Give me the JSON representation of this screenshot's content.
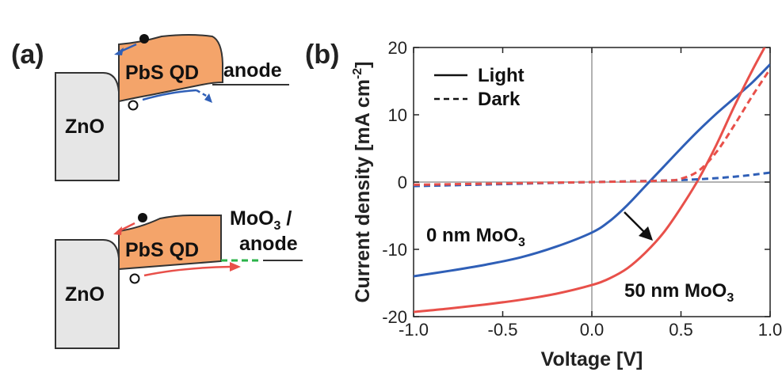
{
  "panel_a": {
    "label": "(a)",
    "top": {
      "zno": "ZnO",
      "pbs": "PbS QD",
      "contact": "anode"
    },
    "bottom": {
      "zno": "ZnO",
      "pbs": "PbS QD",
      "contact_line1_main": "MoO",
      "contact_line1_sub": "3",
      "contact_line1_tail": " /",
      "contact_line2": "anode"
    },
    "colors": {
      "pbs_fill": "#f4a46a",
      "zno_fill": "#e6e6e6",
      "top_arrow": "#2f5fb7",
      "bottom_arrow": "#e8504a",
      "moo3_dash": "#2bb34a"
    }
  },
  "chart_data": {
    "panel_label": "(b)",
    "type": "line",
    "xlabel": "Voltage [V]",
    "ylabel_main": "Current density [mA cm",
    "ylabel_sup": "-2",
    "ylabel_tail": "]",
    "xlim": [
      -1.0,
      1.0
    ],
    "ylim": [
      -20,
      20
    ],
    "xticks": [
      -1.0,
      -0.5,
      0.0,
      0.5,
      1.0
    ],
    "xtick_labels": [
      "-1.0",
      "-0.5",
      "0.0",
      "0.5",
      "1.0"
    ],
    "yticks": [
      -20,
      -10,
      0,
      10,
      20
    ],
    "ytick_labels": [
      "-20",
      "-10",
      "0",
      "10",
      "20"
    ],
    "legend": {
      "placement": "top-left",
      "entries": [
        {
          "label": "Light",
          "style": "solid"
        },
        {
          "label": "Dark",
          "style": "dashed"
        }
      ]
    },
    "annotations": [
      {
        "main": "0 nm MoO",
        "sub": "3"
      },
      {
        "main": "50 nm MoO",
        "sub": "3"
      }
    ],
    "series": [
      {
        "key": "blue_light",
        "color": "#2f5fb7",
        "style": "solid",
        "x": [
          -1.0,
          -0.8,
          -0.6,
          -0.4,
          -0.2,
          0.0,
          0.1,
          0.2,
          0.3,
          0.4,
          0.5,
          0.6,
          0.7,
          0.8,
          0.9,
          1.0
        ],
        "y": [
          -14.0,
          -13.2,
          -12.3,
          -11.2,
          -9.6,
          -7.5,
          -5.8,
          -3.4,
          -0.6,
          2.2,
          5.0,
          7.7,
          10.2,
          12.5,
          14.8,
          17.5
        ]
      },
      {
        "key": "red_light",
        "color": "#e8504a",
        "style": "solid",
        "x": [
          -1.0,
          -0.8,
          -0.6,
          -0.4,
          -0.2,
          0.0,
          0.1,
          0.2,
          0.3,
          0.4,
          0.5,
          0.6,
          0.7,
          0.8,
          0.9,
          1.0
        ],
        "y": [
          -19.3,
          -18.8,
          -18.2,
          -17.5,
          -16.6,
          -15.3,
          -14.3,
          -12.8,
          -10.5,
          -7.6,
          -3.8,
          0.5,
          5.6,
          11.3,
          16.6,
          21.5
        ]
      },
      {
        "key": "blue_dark",
        "color": "#2f5fb7",
        "style": "dashed",
        "x": [
          -1.0,
          -0.5,
          0.0,
          0.5,
          0.8,
          1.0
        ],
        "y": [
          -0.6,
          -0.3,
          0.0,
          0.3,
          0.8,
          1.4
        ]
      },
      {
        "key": "red_dark",
        "color": "#e8504a",
        "style": "dashed",
        "x": [
          -1.0,
          -0.5,
          0.0,
          0.4,
          0.5,
          0.6,
          0.7,
          0.8,
          0.9,
          1.0
        ],
        "y": [
          -0.4,
          -0.2,
          0.0,
          0.2,
          0.5,
          1.7,
          4.5,
          8.5,
          12.8,
          16.8
        ]
      }
    ]
  }
}
